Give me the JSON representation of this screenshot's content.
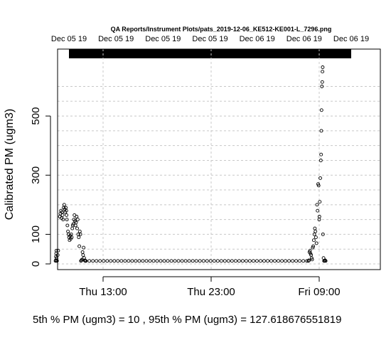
{
  "chart_data": {
    "type": "scatter",
    "title": "QA Reports/Instrument Plots/pats_2019-12-06_KE512-KE001-L_7296.png",
    "ylabel": "Calibrated PM (ugm3)",
    "xlabel": "",
    "x_unit": "hours since Thu 00:00",
    "xlim": [
      7.9,
      34.2
    ],
    "ylim": [
      0,
      670
    ],
    "x_ticks": [
      {
        "x": 13,
        "label": "Thu 13:00"
      },
      {
        "x": 23,
        "label": "Thu 23:00"
      },
      {
        "x": 33,
        "label": "Fri 09:00"
      }
    ],
    "y_ticks": [
      0,
      100,
      300,
      500
    ],
    "y_grid": [
      0,
      50,
      100,
      150,
      200,
      250,
      300,
      350,
      400,
      450,
      500,
      550,
      600
    ],
    "x_grid": [
      13,
      23,
      33
    ],
    "grid": true,
    "top_axis_labels": [
      "Dec 05 19",
      "Dec 05 19",
      "Dec 05 19",
      "Dec 05 19",
      "Dec 06 19",
      "Dec 06 19",
      "Dec 06 19"
    ],
    "footer": "5th % PM (ugm3) =  10 , 95th % PM (ugm3)  =  127.618676551819",
    "series": [
      {
        "marker": "open-circle",
        "points": [
          [
            8.6,
            10
          ],
          [
            8.62,
            12
          ],
          [
            8.64,
            25
          ],
          [
            8.66,
            35
          ],
          [
            8.68,
            45
          ],
          [
            8.7,
            20
          ],
          [
            8.72,
            12
          ],
          [
            8.74,
            10
          ],
          [
            8.8,
            30
          ],
          [
            8.85,
            45
          ],
          [
            9.0,
            160
          ],
          [
            9.05,
            170
          ],
          [
            9.1,
            180
          ],
          [
            9.15,
            155
          ],
          [
            9.2,
            175
          ],
          [
            9.25,
            165
          ],
          [
            9.3,
            150
          ],
          [
            9.35,
            190
          ],
          [
            9.4,
            200
          ],
          [
            9.45,
            185
          ],
          [
            9.5,
            175
          ],
          [
            9.55,
            190
          ],
          [
            9.6,
            180
          ],
          [
            9.62,
            165
          ],
          [
            9.65,
            150
          ],
          [
            9.7,
            130
          ],
          [
            9.75,
            110
          ],
          [
            9.8,
            100
          ],
          [
            9.85,
            90
          ],
          [
            9.9,
            80
          ],
          [
            9.95,
            95
          ],
          [
            10.0,
            85
          ],
          [
            10.05,
            100
          ],
          [
            10.1,
            90
          ],
          [
            10.15,
            120
          ],
          [
            10.2,
            130
          ],
          [
            10.25,
            135
          ],
          [
            10.3,
            150
          ],
          [
            10.35,
            165
          ],
          [
            10.4,
            145
          ],
          [
            10.45,
            130
          ],
          [
            10.5,
            140
          ],
          [
            10.55,
            160
          ],
          [
            10.6,
            120
          ],
          [
            10.65,
            150
          ],
          [
            10.7,
            100
          ],
          [
            10.75,
            90
          ],
          [
            10.8,
            60
          ],
          [
            10.85,
            110
          ],
          [
            10.9,
            100
          ],
          [
            10.95,
            10
          ],
          [
            11.0,
            12
          ],
          [
            11.05,
            15
          ],
          [
            11.1,
            40
          ],
          [
            11.15,
            30
          ],
          [
            11.2,
            55
          ],
          [
            11.25,
            20
          ],
          [
            11.3,
            12
          ],
          [
            11.35,
            10
          ],
          [
            11.4,
            10
          ],
          [
            32.0,
            10
          ],
          [
            32.05,
            12
          ],
          [
            32.1,
            40
          ],
          [
            32.15,
            45
          ],
          [
            32.2,
            35
          ],
          [
            32.25,
            30
          ],
          [
            32.3,
            20
          ],
          [
            32.35,
            15
          ],
          [
            32.4,
            55
          ],
          [
            32.45,
            60
          ],
          [
            32.5,
            80
          ],
          [
            32.55,
            100
          ],
          [
            32.6,
            120
          ],
          [
            32.65,
            110
          ],
          [
            32.7,
            90
          ],
          [
            32.75,
            70
          ],
          [
            32.8,
            200
          ],
          [
            32.85,
            180
          ],
          [
            32.9,
            270
          ],
          [
            32.95,
            265
          ],
          [
            33.0,
            150
          ],
          [
            33.02,
            160
          ],
          [
            33.05,
            210
          ],
          [
            33.1,
            290
          ],
          [
            33.15,
            350
          ],
          [
            33.18,
            370
          ],
          [
            33.2,
            450
          ],
          [
            33.22,
            520
          ],
          [
            33.25,
            600
          ],
          [
            33.28,
            615
          ],
          [
            33.3,
            650
          ],
          [
            33.32,
            665
          ],
          [
            33.35,
            100
          ],
          [
            33.4,
            20
          ],
          [
            33.45,
            10
          ],
          [
            33.5,
            10
          ],
          [
            33.55,
            12
          ],
          [
            33.6,
            10
          ]
        ],
        "baseline": {
          "x_start": 11.4,
          "x_end": 32.0,
          "y": 10
        }
      }
    ]
  }
}
